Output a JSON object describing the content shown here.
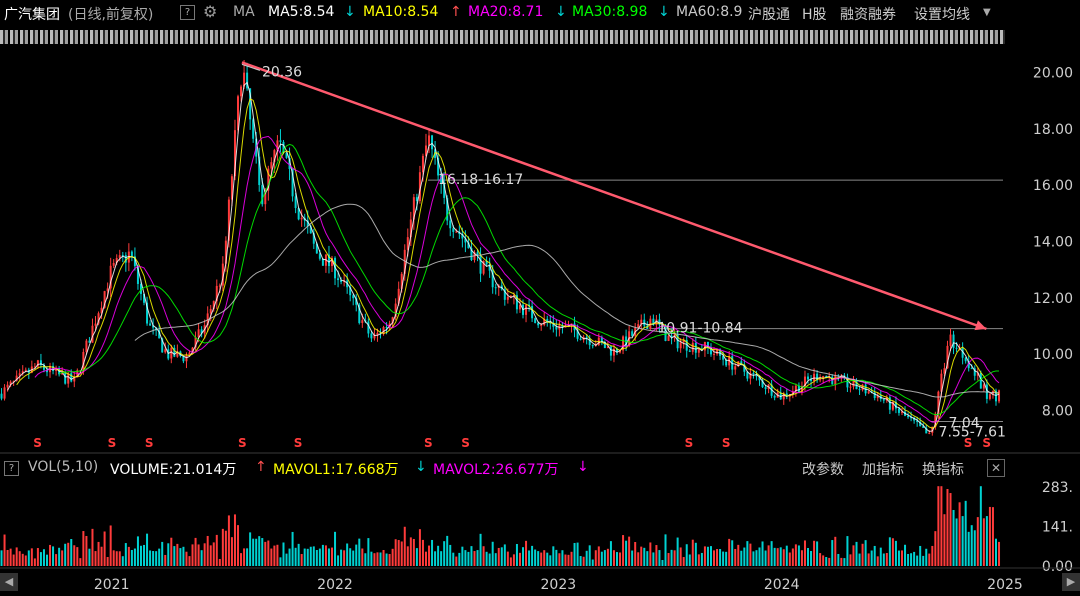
{
  "header": {
    "stock_name": "广汽集团",
    "mode": "(日线,前复权)",
    "help": "?",
    "ma_label": "MA",
    "ma5": "MA5:8.54",
    "ma5_arrow": "↓",
    "ma10": "MA10:8.54",
    "ma10_arrow": "↑",
    "ma20": "MA20:8.71",
    "ma20_arrow": "↓",
    "ma30": "MA30:8.98",
    "ma30_arrow": "↓",
    "ma60": "MA60:8.9",
    "tab_hk_connect": "沪股通",
    "tab_h_share": "H股",
    "tab_margin": "融资融券",
    "tab_settings": "设置均线",
    "colors": {
      "ma5": "#ffffff",
      "ma10": "#ffff00",
      "ma20": "#ff00ff",
      "ma30": "#00ff00",
      "ma60": "#c8c8c8"
    }
  },
  "volume_header": {
    "label": "VOL(5,10)",
    "volume": "VOLUME:21.014万",
    "volume_arrow": "↑",
    "mavol1": "MAVOL1:17.668万",
    "mavol1_arrow": "↓",
    "mavol2": "MAVOL2:26.677万",
    "mavol2_arrow": "↓",
    "btn_params": "改参数",
    "btn_add": "加指标",
    "btn_switch": "换指标",
    "close": "✕"
  },
  "chart_data": {
    "type": "candlestick",
    "price_axis": {
      "ticks": [
        8.0,
        10.0,
        12.0,
        14.0,
        16.0,
        18.0,
        20.0
      ],
      "labels": [
        "8.00",
        "10.00",
        "12.00",
        "14.00",
        "16.00",
        "18.00",
        "20.00"
      ],
      "range": [
        6.6,
        20.8
      ]
    },
    "volume_axis": {
      "ticks": [
        0,
        141,
        283
      ],
      "labels": [
        "0.00",
        "141.",
        "283."
      ],
      "range": [
        0,
        300
      ]
    },
    "x_axis": {
      "labels": [
        "2021",
        "2022",
        "2023",
        "2024",
        "2025"
      ]
    },
    "price_path": [
      [
        "2020-07",
        8.6
      ],
      [
        "2020-09",
        9.6
      ],
      [
        "2020-11",
        9.0
      ],
      [
        "2021-01",
        13.0
      ],
      [
        "2021-02",
        13.6
      ],
      [
        "2021-03",
        11.0
      ],
      [
        "2021-04",
        10.0
      ],
      [
        "2021-05",
        9.9
      ],
      [
        "2021-06",
        11.0
      ],
      [
        "2021-07",
        13.0
      ],
      [
        "2021-08",
        20.36
      ],
      [
        "2021-09",
        15.5
      ],
      [
        "2021-10",
        17.5
      ],
      [
        "2021-11",
        15.2
      ],
      [
        "2021-12",
        13.6
      ],
      [
        "2022-01",
        13.0
      ],
      [
        "2022-03",
        10.5
      ],
      [
        "2022-04",
        11.2
      ],
      [
        "2022-06",
        17.7
      ],
      [
        "2022-07",
        15.0
      ],
      [
        "2022-09",
        13.0
      ],
      [
        "2022-10",
        12.2
      ],
      [
        "2022-12",
        11.2
      ],
      [
        "2023-02",
        10.8
      ],
      [
        "2023-04",
        10.1
      ],
      [
        "2023-06",
        11.3
      ],
      [
        "2023-07",
        10.5
      ],
      [
        "2023-09",
        10.2
      ],
      [
        "2023-11",
        9.4
      ],
      [
        "2024-01",
        8.5
      ],
      [
        "2024-03",
        9.3
      ],
      [
        "2024-06",
        8.6
      ],
      [
        "2024-08",
        7.6
      ],
      [
        "2024-09",
        7.04
      ],
      [
        "2024-10",
        10.6
      ],
      [
        "2024-11",
        9.8
      ],
      [
        "2024-12",
        8.54
      ]
    ],
    "annotations": [
      {
        "text": "20.36",
        "x": "2021-08",
        "y": 20.36
      },
      {
        "text": "16.18-16.17",
        "x": "2022-06",
        "y": 16.18
      },
      {
        "text": "10.91-10.84",
        "x": "2023-06",
        "y": 10.91
      },
      {
        "text": "7.04",
        "x": "2024-09",
        "y": 7.04
      },
      {
        "text": "7.55-7.61",
        "x": "2024-09",
        "y": 7.58
      }
    ],
    "levels": [
      16.18,
      10.91,
      7.61
    ],
    "trendline": {
      "from": [
        "2021-08",
        20.36
      ],
      "to": [
        "2024-12",
        10.9
      ],
      "color": "#ff5a6e"
    },
    "moving_averages": [
      {
        "name": "MA5",
        "color": "#ffffff"
      },
      {
        "name": "MA10",
        "color": "#ffff00"
      },
      {
        "name": "MA20",
        "color": "#ff00ff"
      },
      {
        "name": "MA30",
        "color": "#00ff00"
      },
      {
        "name": "MA60",
        "color": "#c8c8c8"
      }
    ],
    "event_marker": "S",
    "event_months": [
      "2020-09",
      "2021-01",
      "2021-03",
      "2021-08",
      "2021-11",
      "2022-06",
      "2022-08",
      "2023-08",
      "2023-10",
      "2024-11",
      "2024-12"
    ],
    "colors": {
      "up": "#ff3b3b",
      "down": "#00d2d2",
      "axis_text": "#cfcfcf",
      "level": "#888888"
    }
  }
}
